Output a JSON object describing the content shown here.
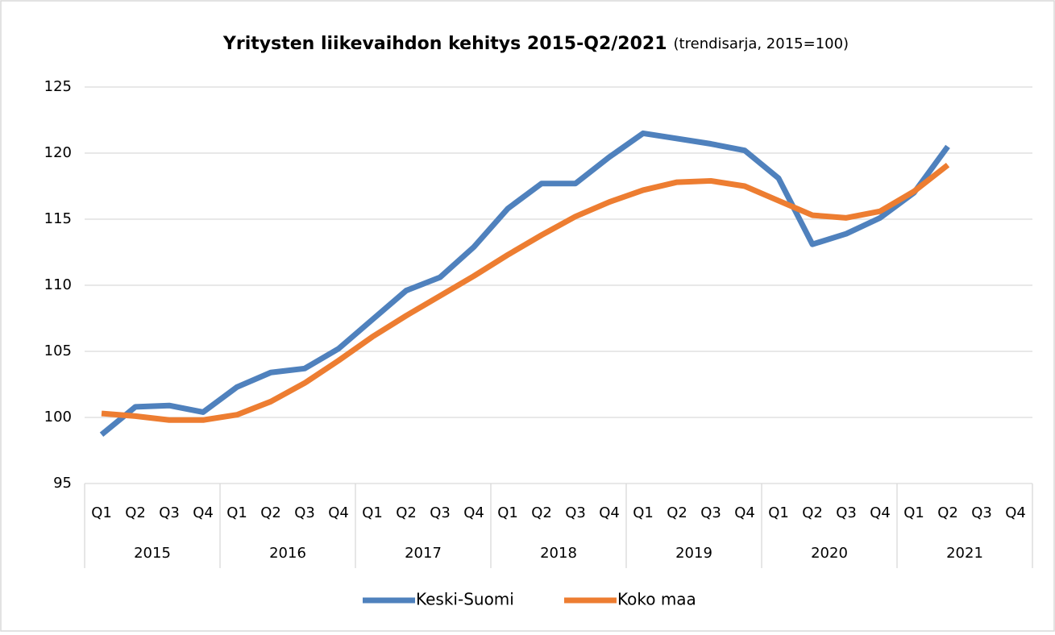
{
  "chart_data": {
    "type": "line",
    "title": "Yritysten liikevaihdon kehitys 2015-Q2/2021",
    "subtitle": "(trendisarja, 2015=100)",
    "categories": [
      "Q1",
      "Q2",
      "Q3",
      "Q4",
      "Q1",
      "Q2",
      "Q3",
      "Q4",
      "Q1",
      "Q2",
      "Q3",
      "Q4",
      "Q1",
      "Q2",
      "Q3",
      "Q4",
      "Q1",
      "Q2",
      "Q3",
      "Q4",
      "Q1",
      "Q2",
      "Q3",
      "Q4",
      "Q1",
      "Q2",
      "Q3",
      "Q4"
    ],
    "category_groups": [
      "2015",
      "2016",
      "2017",
      "2018",
      "2019",
      "2020",
      "2021"
    ],
    "series": [
      {
        "name": "Keski-Suomi",
        "color": "#4f81bd",
        "values": [
          98.7,
          100.8,
          100.9,
          100.4,
          102.3,
          103.4,
          103.7,
          105.2,
          107.4,
          109.6,
          110.6,
          112.9,
          115.8,
          117.7,
          117.7,
          119.7,
          121.5,
          121.1,
          120.7,
          120.2,
          118.1,
          113.1,
          113.9,
          115.1,
          117.0,
          120.5,
          null,
          null
        ]
      },
      {
        "name": "Koko maa",
        "color": "#ed7d31",
        "values": [
          100.3,
          100.1,
          99.8,
          99.8,
          100.2,
          101.2,
          102.6,
          104.3,
          106.1,
          107.7,
          109.2,
          110.7,
          112.3,
          113.8,
          115.2,
          116.3,
          117.2,
          117.8,
          117.9,
          117.5,
          116.4,
          115.3,
          115.1,
          115.6,
          117.1,
          119.1,
          null,
          null
        ]
      }
    ],
    "ylim": [
      95,
      125
    ],
    "yticks": [
      95,
      100,
      105,
      110,
      115,
      120,
      125
    ],
    "grid": true,
    "legend": "bottom"
  }
}
